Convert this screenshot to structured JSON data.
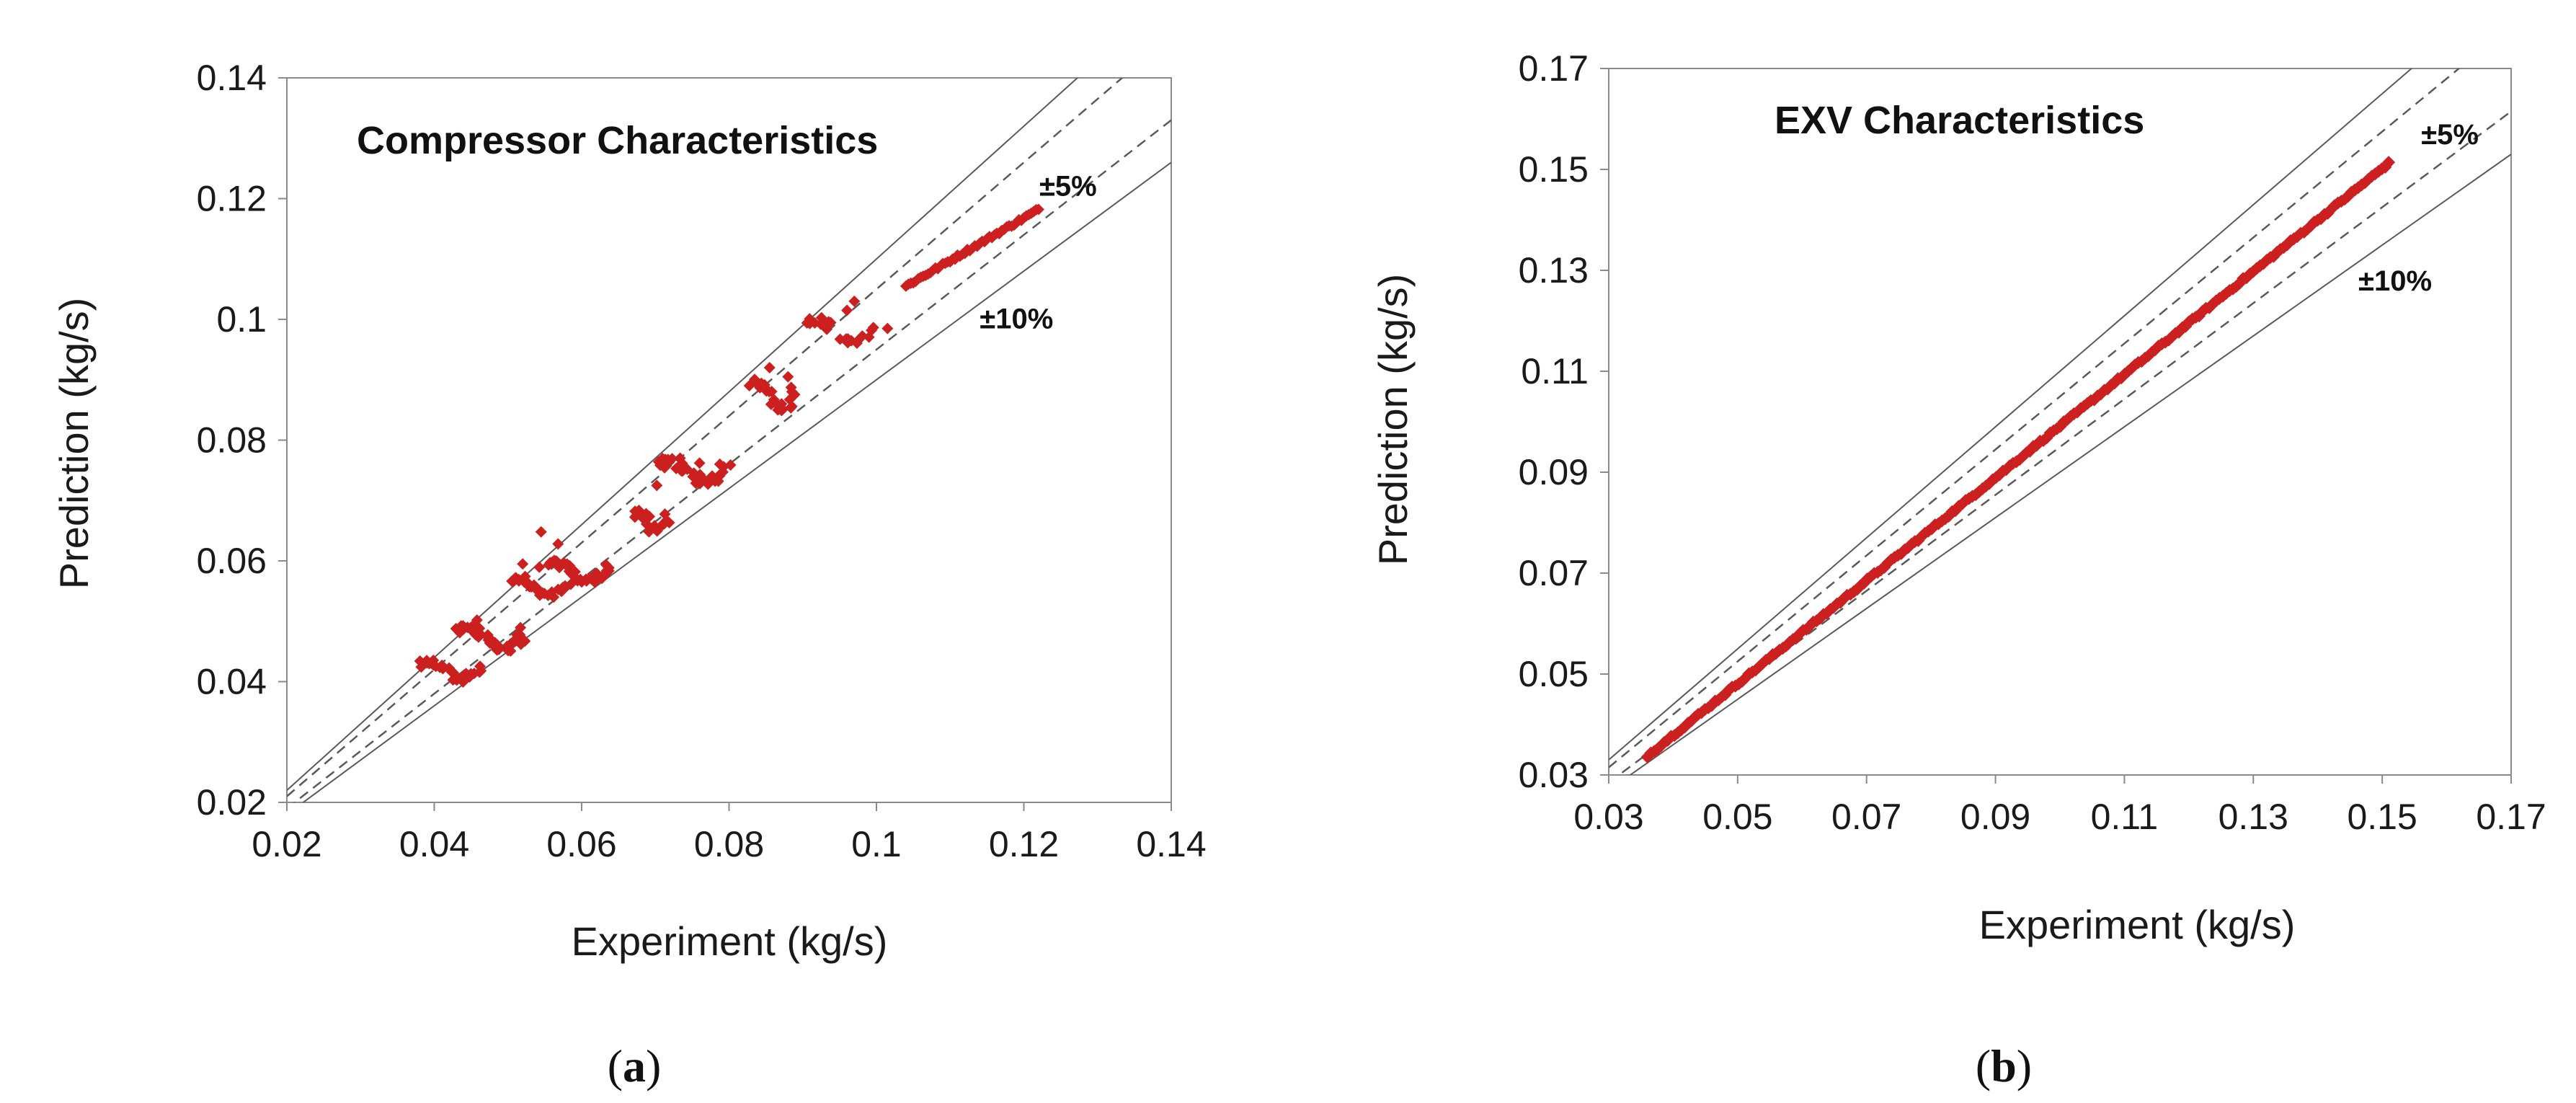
{
  "colors": {
    "points": "#cc1f1f",
    "frame": "#8a8a8a",
    "tol_line": "#5a5a5a"
  },
  "chart_data": [
    {
      "type": "scatter",
      "panel_prefix": "(",
      "panel_letter": "a",
      "panel_suffix": ")",
      "title": "Compressor  Characteristics",
      "xlabel": "Experiment (kg/s)",
      "ylabel": "Prediction (kg/s)",
      "xlim": [
        0.02,
        0.14
      ],
      "ylim": [
        0.02,
        0.14
      ],
      "xticks": [
        0.02,
        0.04,
        0.06,
        0.08,
        0.1,
        0.12,
        0.14
      ],
      "xtick_labels": [
        "0.02",
        "0.04",
        "0.06",
        "0.08",
        "0.1",
        "0.12",
        "0.14"
      ],
      "yticks": [
        0.02,
        0.04,
        0.06,
        0.08,
        0.1,
        0.12,
        0.14
      ],
      "ytick_labels": [
        "0.02",
        "0.04",
        "0.06",
        "0.08",
        "0.1",
        "0.12",
        "0.14"
      ],
      "tolerance_bands": [
        {
          "label": "±5%",
          "factor": 0.05,
          "style": "dashed",
          "label_at": [
            0.126,
            0.1205
          ]
        },
        {
          "label": "±10%",
          "factor": 0.1,
          "style": "solid",
          "label_at": [
            0.119,
            0.0985
          ]
        }
      ],
      "clusters": [
        {
          "x": [
            0.038,
            0.046
          ],
          "y": [
            0.0405,
            0.0432
          ],
          "n": 30
        },
        {
          "x": [
            0.043,
            0.052
          ],
          "y": [
            0.0455,
            0.049
          ],
          "n": 45
        },
        {
          "x": [
            0.05,
            0.058
          ],
          "y": [
            0.0545,
            0.057
          ],
          "n": 30
        },
        {
          "x": [
            0.055,
            0.064
          ],
          "y": [
            0.057,
            0.0595
          ],
          "n": 35
        },
        {
          "x": [
            0.067,
            0.072
          ],
          "y": [
            0.065,
            0.068
          ],
          "n": 20
        },
        {
          "x": [
            0.07,
            0.08
          ],
          "y": [
            0.073,
            0.077
          ],
          "n": 35
        },
        {
          "x": [
            0.083,
            0.089
          ],
          "y": [
            0.085,
            0.0895
          ],
          "n": 25
        },
        {
          "x": [
            0.09,
            0.1
          ],
          "y": [
            0.096,
            0.1
          ],
          "n": 20
        }
      ],
      "points": [
        [
          0.0432,
          0.0485
        ],
        [
          0.0458,
          0.0502
        ],
        [
          0.052,
          0.0595
        ],
        [
          0.0545,
          0.0648
        ],
        [
          0.0568,
          0.0628
        ],
        [
          0.0702,
          0.0725
        ],
        [
          0.076,
          0.0762
        ],
        [
          0.0855,
          0.092
        ],
        [
          0.088,
          0.0905
        ],
        [
          0.097,
          0.103
        ],
        [
          0.096,
          0.1015
        ],
        [
          0.1015,
          0.0985
        ]
      ],
      "trend": {
        "x": [
          0.104,
          0.122
        ],
        "y0": 0.1055,
        "y1": 0.1182,
        "n": 55
      }
    },
    {
      "type": "scatter",
      "panel_prefix": "(",
      "panel_letter": "b",
      "panel_suffix": ")",
      "title": "EXV  Characteristics",
      "xlabel": "Experiment (kg/s)",
      "ylabel": "Prediction (kg/s)",
      "xlim": [
        0.03,
        0.17
      ],
      "ylim": [
        0.03,
        0.17
      ],
      "xticks": [
        0.03,
        0.05,
        0.07,
        0.09,
        0.11,
        0.13,
        0.15,
        0.17
      ],
      "xtick_labels": [
        "0.03",
        "0.05",
        "0.07",
        "0.09",
        "0.11",
        "0.13",
        "0.15",
        "0.17"
      ],
      "yticks": [
        0.03,
        0.05,
        0.07,
        0.09,
        0.11,
        0.13,
        0.15,
        0.17
      ],
      "ytick_labels": [
        "0.03",
        "0.05",
        "0.07",
        "0.09",
        "0.11",
        "0.13",
        "0.15",
        "0.17"
      ],
      "tolerance_bands": [
        {
          "label": "±5%",
          "factor": 0.05,
          "style": "dashed",
          "label_at": [
            0.1605,
            0.155
          ]
        },
        {
          "label": "±10%",
          "factor": 0.1,
          "style": "solid",
          "label_at": [
            0.152,
            0.126
          ]
        }
      ],
      "clusters": [],
      "points": [],
      "trend": {
        "x": [
          0.036,
          0.151
        ],
        "y0": 0.0338,
        "y1": 0.1512,
        "n": 220
      }
    }
  ]
}
